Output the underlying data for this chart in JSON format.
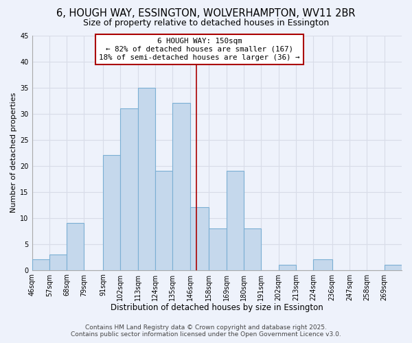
{
  "title": "6, HOUGH WAY, ESSINGTON, WOLVERHAMPTON, WV11 2BR",
  "subtitle": "Size of property relative to detached houses in Essington",
  "xlabel": "Distribution of detached houses by size in Essington",
  "ylabel": "Number of detached properties",
  "bin_labels": [
    "46sqm",
    "57sqm",
    "68sqm",
    "79sqm",
    "91sqm",
    "102sqm",
    "113sqm",
    "124sqm",
    "135sqm",
    "146sqm",
    "158sqm",
    "169sqm",
    "180sqm",
    "191sqm",
    "202sqm",
    "213sqm",
    "224sqm",
    "236sqm",
    "247sqm",
    "258sqm",
    "269sqm"
  ],
  "bin_edges": [
    46,
    57,
    68,
    79,
    91,
    102,
    113,
    124,
    135,
    146,
    158,
    169,
    180,
    191,
    202,
    213,
    224,
    236,
    247,
    258,
    269,
    280
  ],
  "counts": [
    2,
    3,
    9,
    0,
    22,
    31,
    35,
    19,
    32,
    12,
    8,
    19,
    8,
    0,
    1,
    0,
    2,
    0,
    0,
    0,
    1
  ],
  "bar_color": "#c5d8ec",
  "bar_edge_color": "#7bafd4",
  "vline_x": 150,
  "vline_color": "#aa0000",
  "annotation_line1": "6 HOUGH WAY: 150sqm",
  "annotation_line2": "← 82% of detached houses are smaller (167)",
  "annotation_line3": "18% of semi-detached houses are larger (36) →",
  "annotation_box_color": "#ffffff",
  "annotation_box_edge": "#aa0000",
  "ylim": [
    0,
    45
  ],
  "yticks": [
    0,
    5,
    10,
    15,
    20,
    25,
    30,
    35,
    40,
    45
  ],
  "background_color": "#eef2fb",
  "grid_color": "#d8dce8",
  "footer_line1": "Contains HM Land Registry data © Crown copyright and database right 2025.",
  "footer_line2": "Contains public sector information licensed under the Open Government Licence v3.0.",
  "title_fontsize": 10.5,
  "subtitle_fontsize": 9,
  "xlabel_fontsize": 8.5,
  "ylabel_fontsize": 8,
  "tick_fontsize": 7,
  "annotation_fontsize": 7.8,
  "footer_fontsize": 6.5
}
